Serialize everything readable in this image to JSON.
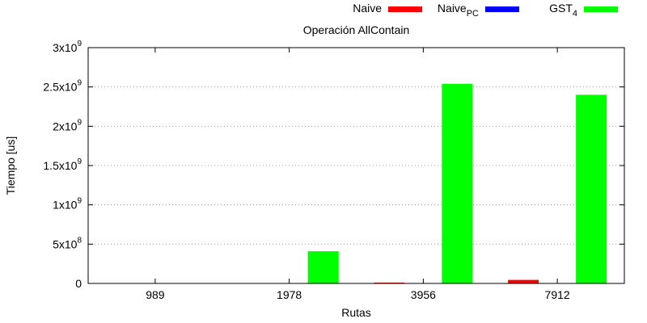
{
  "chart_data": {
    "type": "bar",
    "title": "Operación AllContain",
    "xlabel": "Rutas",
    "ylabel": "Tiempo [us]",
    "categories": [
      "989",
      "1978",
      "3956",
      "7912"
    ],
    "ylim": [
      0,
      3000000000
    ],
    "yticks": [
      {
        "value": 0,
        "mantissa": "0",
        "exp": ""
      },
      {
        "value": 500000000,
        "mantissa": "5x10",
        "exp": "8"
      },
      {
        "value": 1000000000,
        "mantissa": "1x10",
        "exp": "9"
      },
      {
        "value": 1500000000,
        "mantissa": "1.5x10",
        "exp": "9"
      },
      {
        "value": 2000000000,
        "mantissa": "2x10",
        "exp": "9"
      },
      {
        "value": 2500000000,
        "mantissa": "2.5x10",
        "exp": "9"
      },
      {
        "value": 3000000000,
        "mantissa": "3x10",
        "exp": "9"
      }
    ],
    "grid": "horizontal dotted",
    "legend_position": "top-right, outside plot",
    "series": [
      {
        "name": "Naive",
        "name_sub": "",
        "color": "#ff0000",
        "values": [
          0,
          0,
          10000000,
          45000000
        ]
      },
      {
        "name": "Naive",
        "name_sub": "PC",
        "color": "#0000ff",
        "values": [
          0,
          0,
          0,
          0
        ]
      },
      {
        "name": "GST",
        "name_sub": "4",
        "color": "#00ff00",
        "values": [
          0,
          410000000,
          2540000000,
          2400000000
        ]
      }
    ]
  }
}
